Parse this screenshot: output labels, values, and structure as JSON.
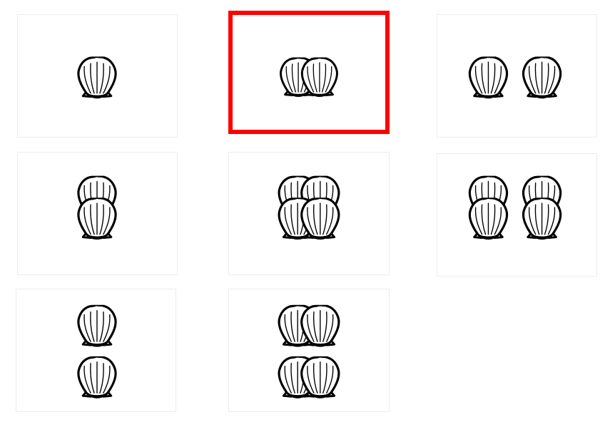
{
  "selection_color": "#ff0000",
  "shell_icon": "scallop-shell-icon",
  "tiles": [
    {
      "id": "one-shell",
      "selected": false
    },
    {
      "id": "two-shells-overlapping",
      "selected": true
    },
    {
      "id": "two-shells-apart",
      "selected": false
    },
    {
      "id": "two-shells-stacked-overlapping",
      "selected": false
    },
    {
      "id": "four-shells-overlapping",
      "selected": false
    },
    {
      "id": "four-shells-grid",
      "selected": false
    },
    {
      "id": "two-shells-stacked-apart",
      "selected": false
    },
    {
      "id": "four-shells-paired",
      "selected": false
    }
  ]
}
